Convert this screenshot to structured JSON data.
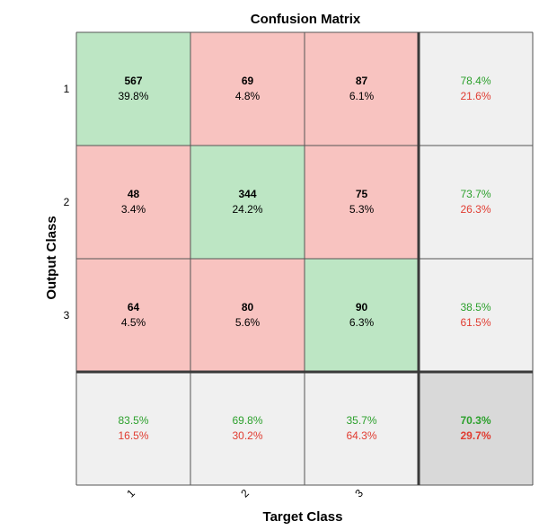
{
  "chart_data": {
    "type": "heatmap",
    "title": "Confusion Matrix",
    "xlabel": "Target Class",
    "ylabel": "Output Class",
    "classes": [
      "1",
      "2",
      "3"
    ],
    "counts": [
      [
        567,
        69,
        87
      ],
      [
        48,
        344,
        75
      ],
      [
        64,
        80,
        90
      ]
    ],
    "cell_percents": [
      [
        "39.8%",
        "4.8%",
        "6.1%"
      ],
      [
        "3.4%",
        "24.2%",
        "5.3%"
      ],
      [
        "4.5%",
        "5.6%",
        "6.3%"
      ]
    ],
    "row_summary": [
      {
        "correct": "78.4%",
        "incorrect": "21.6%"
      },
      {
        "correct": "73.7%",
        "incorrect": "26.3%"
      },
      {
        "correct": "38.5%",
        "incorrect": "61.5%"
      }
    ],
    "col_summary": [
      {
        "correct": "83.5%",
        "incorrect": "16.5%"
      },
      {
        "correct": "69.8%",
        "incorrect": "30.2%"
      },
      {
        "correct": "35.7%",
        "incorrect": "64.3%"
      }
    ],
    "overall": {
      "correct": "70.3%",
      "incorrect": "29.7%"
    },
    "colors": {
      "diagonal": "#bde6c4",
      "off_diagonal": "#f8c3c0",
      "summary": "#f0f0f0",
      "overall": "#d9d9d9",
      "correct_text": "#2ca02c",
      "incorrect_text": "#e03c31",
      "grid": "#555555",
      "heavy_line": "#3a3a3a"
    }
  }
}
